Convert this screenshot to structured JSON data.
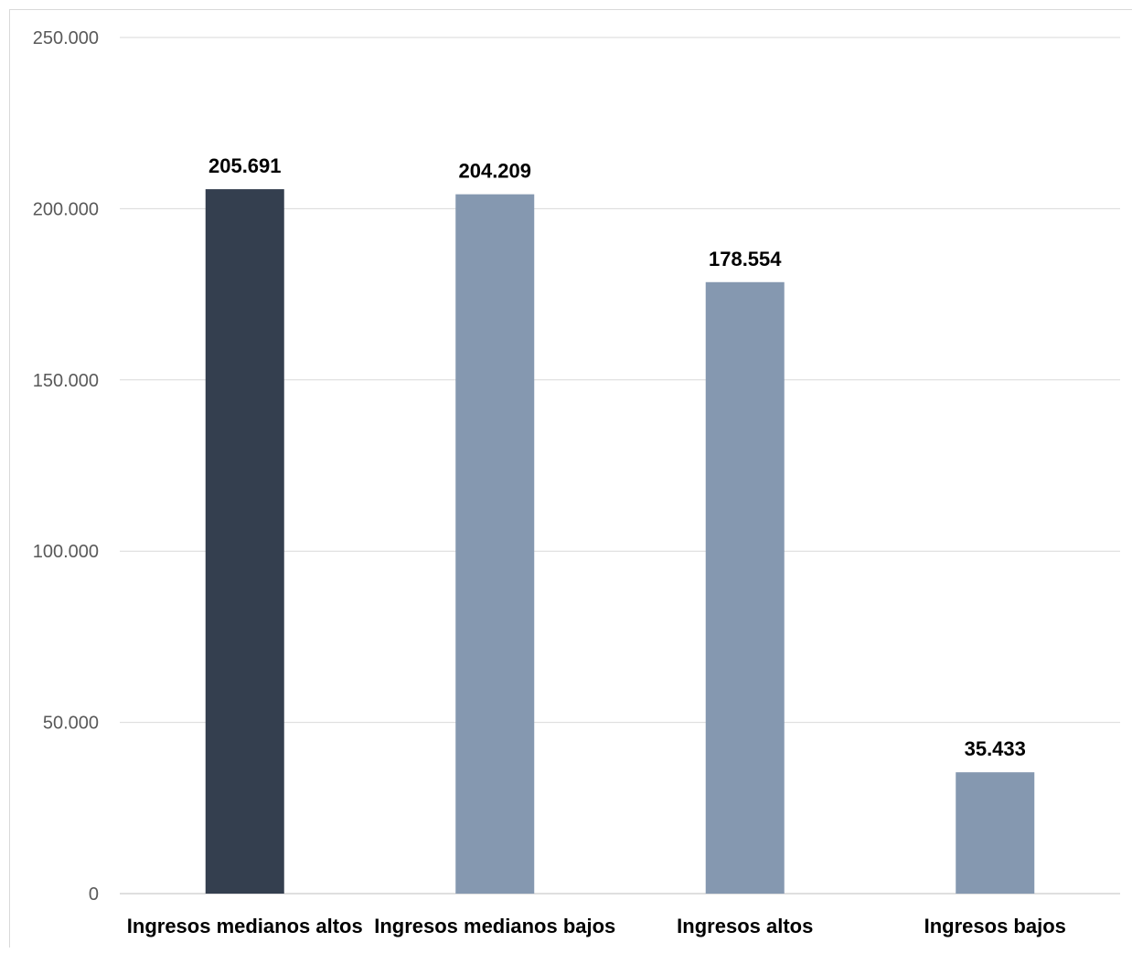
{
  "chart_data": {
    "type": "bar",
    "title": "",
    "xlabel": "",
    "ylabel": "",
    "categories": [
      "Ingresos medianos altos",
      "Ingresos medianos bajos",
      "Ingresos altos",
      "Ingresos bajos"
    ],
    "values": [
      205691,
      204209,
      178554,
      35433
    ],
    "value_labels": [
      "205.691",
      "204.209",
      "178.554",
      "35.433"
    ],
    "ylim": [
      0,
      250000
    ],
    "y_ticks": [
      0,
      50000,
      100000,
      150000,
      200000,
      250000
    ],
    "y_tick_labels": [
      "0",
      "50.000",
      "100.000",
      "150.000",
      "200.000",
      "250.000"
    ],
    "grid": true,
    "legend": "none",
    "bar_colors": [
      "#343f4f",
      "#8598b0",
      "#8598b0",
      "#8598b0"
    ]
  }
}
